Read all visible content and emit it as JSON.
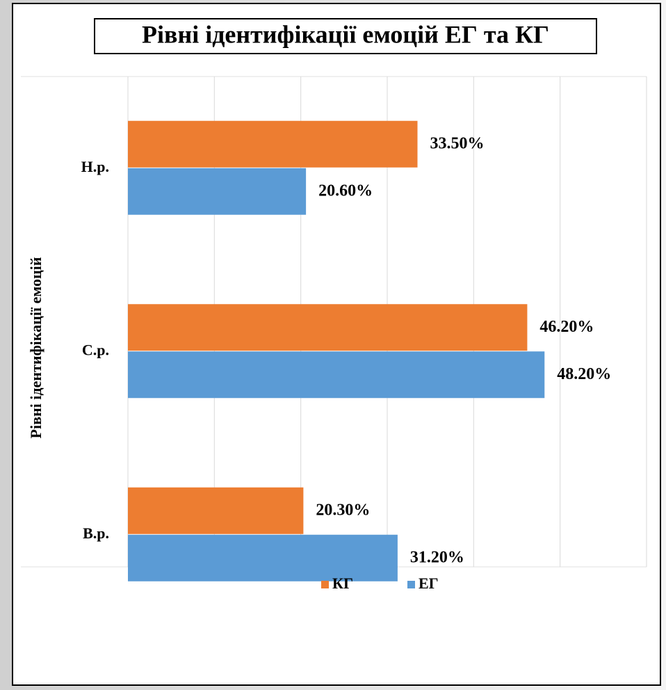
{
  "chart_data": {
    "type": "hbar",
    "title": "Рівні ідентифікації емоцій ЕГ та КГ",
    "y_label": "Рівні ідентифікації  емоцій",
    "categories": [
      "Н.р.",
      "С.р.",
      "В.р."
    ],
    "series": [
      {
        "name": "КГ",
        "color": "#ed7d31",
        "values": [
          33.5,
          46.2,
          20.3
        ],
        "value_labels": [
          "33.50%",
          "46.20%",
          "20.30%"
        ]
      },
      {
        "name": "ЕГ",
        "color": "#5b9bd5",
        "values": [
          20.6,
          48.2,
          31.2
        ],
        "value_labels": [
          "20.60%",
          "48.20%",
          "31.20%"
        ]
      }
    ],
    "xlim": [
      0,
      60
    ],
    "xticks": [
      0,
      10,
      20,
      30,
      40,
      50,
      60
    ],
    "grid": true,
    "legend": "bottom"
  }
}
